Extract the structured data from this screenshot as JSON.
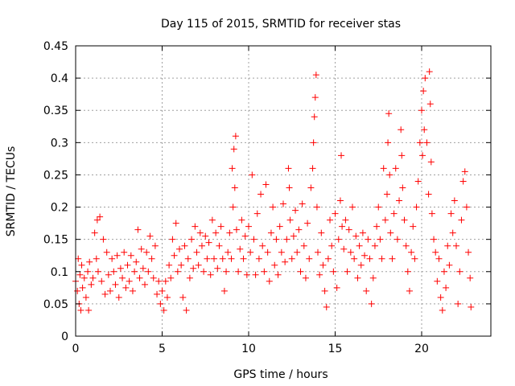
{
  "chart_data": {
    "type": "scatter",
    "title": "Day 115 of 2015, SRMTID for receiver stas",
    "xlabel": "GPS time / hours",
    "ylabel": "SRMTID / TECUs",
    "xlim": [
      0,
      24
    ],
    "ylim": [
      0,
      0.45
    ],
    "xticks": [
      0,
      5,
      10,
      15,
      20
    ],
    "xtick_labels": [
      "0",
      "5",
      "10",
      "15",
      "20"
    ],
    "yticks": [
      0,
      0.05,
      0.1,
      0.15,
      0.2,
      0.25,
      0.3,
      0.35,
      0.4,
      0.45
    ],
    "ytick_labels": [
      "0",
      "0.05",
      "0.1",
      "0.15",
      "0.2",
      "0.25",
      "0.3",
      "0.35",
      "0.4",
      "0.45"
    ],
    "grid": true,
    "marker": "+",
    "color": "#ff0000",
    "series": [
      {
        "name": "SRMTID",
        "points": [
          [
            0.0,
            0.085
          ],
          [
            0.1,
            0.07
          ],
          [
            0.15,
            0.12
          ],
          [
            0.2,
            0.05
          ],
          [
            0.25,
            0.095
          ],
          [
            0.3,
            0.04
          ],
          [
            0.35,
            0.11
          ],
          [
            0.4,
            0.075
          ],
          [
            0.5,
            0.09
          ],
          [
            0.6,
            0.06
          ],
          [
            0.7,
            0.1
          ],
          [
            0.75,
            0.04
          ],
          [
            0.8,
            0.115
          ],
          [
            0.9,
            0.08
          ],
          [
            1.0,
            0.09
          ],
          [
            1.1,
            0.16
          ],
          [
            1.2,
            0.12
          ],
          [
            1.25,
            0.18
          ],
          [
            1.3,
            0.1
          ],
          [
            1.4,
            0.185
          ],
          [
            1.5,
            0.085
          ],
          [
            1.6,
            0.15
          ],
          [
            1.7,
            0.065
          ],
          [
            1.8,
            0.13
          ],
          [
            1.9,
            0.095
          ],
          [
            2.0,
            0.07
          ],
          [
            2.1,
            0.12
          ],
          [
            2.2,
            0.1
          ],
          [
            2.3,
            0.08
          ],
          [
            2.4,
            0.125
          ],
          [
            2.5,
            0.06
          ],
          [
            2.6,
            0.105
          ],
          [
            2.7,
            0.09
          ],
          [
            2.8,
            0.13
          ],
          [
            2.9,
            0.075
          ],
          [
            3.0,
            0.11
          ],
          [
            3.1,
            0.085
          ],
          [
            3.2,
            0.125
          ],
          [
            3.3,
            0.07
          ],
          [
            3.4,
            0.1
          ],
          [
            3.5,
            0.115
          ],
          [
            3.6,
            0.165
          ],
          [
            3.7,
            0.09
          ],
          [
            3.8,
            0.135
          ],
          [
            3.9,
            0.105
          ],
          [
            4.0,
            0.08
          ],
          [
            4.1,
            0.13
          ],
          [
            4.2,
            0.1
          ],
          [
            4.3,
            0.155
          ],
          [
            4.4,
            0.12
          ],
          [
            4.5,
            0.09
          ],
          [
            4.6,
            0.14
          ],
          [
            4.7,
            0.065
          ],
          [
            4.8,
            0.085
          ],
          [
            4.9,
            0.05
          ],
          [
            5.0,
            0.07
          ],
          [
            5.1,
            0.04
          ],
          [
            5.2,
            0.085
          ],
          [
            5.3,
            0.06
          ],
          [
            5.4,
            0.11
          ],
          [
            5.5,
            0.09
          ],
          [
            5.6,
            0.15
          ],
          [
            5.7,
            0.125
          ],
          [
            5.8,
            0.175
          ],
          [
            5.9,
            0.1
          ],
          [
            6.0,
            0.135
          ],
          [
            6.1,
            0.11
          ],
          [
            6.2,
            0.06
          ],
          [
            6.3,
            0.14
          ],
          [
            6.4,
            0.04
          ],
          [
            6.5,
            0.12
          ],
          [
            6.6,
            0.09
          ],
          [
            6.7,
            0.15
          ],
          [
            6.8,
            0.105
          ],
          [
            6.9,
            0.17
          ],
          [
            7.0,
            0.13
          ],
          [
            7.1,
            0.11
          ],
          [
            7.2,
            0.16
          ],
          [
            7.3,
            0.14
          ],
          [
            7.4,
            0.1
          ],
          [
            7.5,
            0.155
          ],
          [
            7.6,
            0.12
          ],
          [
            7.7,
            0.145
          ],
          [
            7.8,
            0.095
          ],
          [
            7.9,
            0.18
          ],
          [
            8.0,
            0.12
          ],
          [
            8.1,
            0.16
          ],
          [
            8.2,
            0.105
          ],
          [
            8.3,
            0.14
          ],
          [
            8.4,
            0.17
          ],
          [
            8.5,
            0.12
          ],
          [
            8.6,
            0.07
          ],
          [
            8.7,
            0.1
          ],
          [
            8.8,
            0.13
          ],
          [
            8.9,
            0.16
          ],
          [
            9.0,
            0.12
          ],
          [
            9.05,
            0.26
          ],
          [
            9.1,
            0.2
          ],
          [
            9.15,
            0.29
          ],
          [
            9.2,
            0.23
          ],
          [
            9.25,
            0.31
          ],
          [
            9.3,
            0.165
          ],
          [
            9.4,
            0.1
          ],
          [
            9.5,
            0.135
          ],
          [
            9.6,
            0.18
          ],
          [
            9.7,
            0.12
          ],
          [
            9.8,
            0.155
          ],
          [
            9.9,
            0.095
          ],
          [
            10.0,
            0.17
          ],
          [
            10.1,
            0.13
          ],
          [
            10.2,
            0.25
          ],
          [
            10.3,
            0.15
          ],
          [
            10.4,
            0.095
          ],
          [
            10.5,
            0.19
          ],
          [
            10.6,
            0.12
          ],
          [
            10.7,
            0.22
          ],
          [
            10.8,
            0.14
          ],
          [
            10.9,
            0.1
          ],
          [
            11.0,
            0.235
          ],
          [
            11.1,
            0.13
          ],
          [
            11.2,
            0.085
          ],
          [
            11.3,
            0.16
          ],
          [
            11.4,
            0.2
          ],
          [
            11.5,
            0.11
          ],
          [
            11.6,
            0.15
          ],
          [
            11.7,
            0.095
          ],
          [
            11.8,
            0.17
          ],
          [
            11.9,
            0.13
          ],
          [
            12.0,
            0.205
          ],
          [
            12.1,
            0.115
          ],
          [
            12.2,
            0.15
          ],
          [
            12.3,
            0.26
          ],
          [
            12.35,
            0.23
          ],
          [
            12.4,
            0.18
          ],
          [
            12.5,
            0.12
          ],
          [
            12.6,
            0.155
          ],
          [
            12.7,
            0.195
          ],
          [
            12.8,
            0.13
          ],
          [
            12.9,
            0.165
          ],
          [
            13.0,
            0.1
          ],
          [
            13.1,
            0.205
          ],
          [
            13.2,
            0.14
          ],
          [
            13.3,
            0.09
          ],
          [
            13.4,
            0.175
          ],
          [
            13.5,
            0.12
          ],
          [
            13.6,
            0.23
          ],
          [
            13.7,
            0.26
          ],
          [
            13.75,
            0.3
          ],
          [
            13.8,
            0.34
          ],
          [
            13.85,
            0.37
          ],
          [
            13.9,
            0.405
          ],
          [
            13.95,
            0.2
          ],
          [
            14.0,
            0.13
          ],
          [
            14.1,
            0.095
          ],
          [
            14.2,
            0.16
          ],
          [
            14.3,
            0.11
          ],
          [
            14.4,
            0.07
          ],
          [
            14.5,
            0.045
          ],
          [
            14.6,
            0.12
          ],
          [
            14.7,
            0.18
          ],
          [
            14.8,
            0.14
          ],
          [
            14.9,
            0.1
          ],
          [
            15.0,
            0.19
          ],
          [
            15.1,
            0.075
          ],
          [
            15.2,
            0.15
          ],
          [
            15.3,
            0.21
          ],
          [
            15.35,
            0.28
          ],
          [
            15.4,
            0.17
          ],
          [
            15.5,
            0.135
          ],
          [
            15.6,
            0.18
          ],
          [
            15.7,
            0.1
          ],
          [
            15.8,
            0.165
          ],
          [
            15.9,
            0.13
          ],
          [
            16.0,
            0.2
          ],
          [
            16.1,
            0.12
          ],
          [
            16.2,
            0.155
          ],
          [
            16.3,
            0.09
          ],
          [
            16.4,
            0.14
          ],
          [
            16.5,
            0.11
          ],
          [
            16.6,
            0.16
          ],
          [
            16.7,
            0.125
          ],
          [
            16.8,
            0.07
          ],
          [
            16.9,
            0.15
          ],
          [
            17.0,
            0.12
          ],
          [
            17.1,
            0.05
          ],
          [
            17.2,
            0.09
          ],
          [
            17.3,
            0.14
          ],
          [
            17.4,
            0.17
          ],
          [
            17.5,
            0.2
          ],
          [
            17.6,
            0.15
          ],
          [
            17.7,
            0.12
          ],
          [
            17.8,
            0.26
          ],
          [
            17.9,
            0.18
          ],
          [
            18.0,
            0.22
          ],
          [
            18.05,
            0.3
          ],
          [
            18.1,
            0.345
          ],
          [
            18.15,
            0.25
          ],
          [
            18.2,
            0.16
          ],
          [
            18.3,
            0.12
          ],
          [
            18.4,
            0.19
          ],
          [
            18.5,
            0.26
          ],
          [
            18.6,
            0.15
          ],
          [
            18.7,
            0.21
          ],
          [
            18.8,
            0.32
          ],
          [
            18.85,
            0.28
          ],
          [
            18.9,
            0.23
          ],
          [
            19.0,
            0.18
          ],
          [
            19.1,
            0.14
          ],
          [
            19.2,
            0.1
          ],
          [
            19.3,
            0.07
          ],
          [
            19.4,
            0.13
          ],
          [
            19.5,
            0.17
          ],
          [
            19.6,
            0.12
          ],
          [
            19.7,
            0.2
          ],
          [
            19.8,
            0.24
          ],
          [
            19.9,
            0.3
          ],
          [
            20.0,
            0.35
          ],
          [
            20.05,
            0.28
          ],
          [
            20.1,
            0.38
          ],
          [
            20.15,
            0.32
          ],
          [
            20.2,
            0.4
          ],
          [
            20.3,
            0.3
          ],
          [
            20.4,
            0.22
          ],
          [
            20.45,
            0.41
          ],
          [
            20.5,
            0.36
          ],
          [
            20.55,
            0.27
          ],
          [
            20.6,
            0.19
          ],
          [
            20.7,
            0.15
          ],
          [
            20.8,
            0.13
          ],
          [
            20.9,
            0.085
          ],
          [
            21.0,
            0.12
          ],
          [
            21.1,
            0.06
          ],
          [
            21.2,
            0.04
          ],
          [
            21.3,
            0.1
          ],
          [
            21.4,
            0.075
          ],
          [
            21.5,
            0.14
          ],
          [
            21.6,
            0.11
          ],
          [
            21.7,
            0.19
          ],
          [
            21.8,
            0.16
          ],
          [
            21.9,
            0.21
          ],
          [
            22.0,
            0.14
          ],
          [
            22.1,
            0.05
          ],
          [
            22.2,
            0.1
          ],
          [
            22.3,
            0.18
          ],
          [
            22.4,
            0.24
          ],
          [
            22.5,
            0.255
          ],
          [
            22.6,
            0.2
          ],
          [
            22.7,
            0.13
          ],
          [
            22.8,
            0.09
          ],
          [
            22.85,
            0.045
          ]
        ]
      }
    ]
  }
}
